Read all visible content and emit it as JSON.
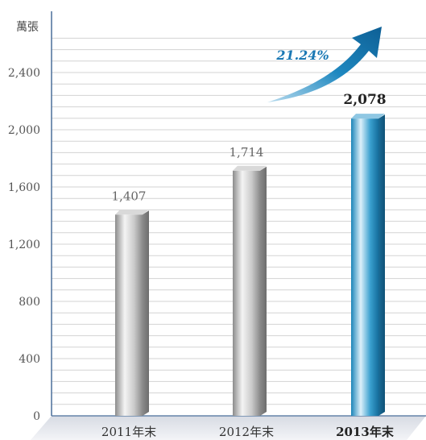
{
  "chart_data": {
    "type": "bar",
    "unit_label": "萬張",
    "categories": [
      "2011年末",
      "2012年末",
      "2013年末"
    ],
    "values": [
      1407,
      1714,
      2078
    ],
    "value_labels": [
      "1,407",
      "1,714",
      "2,078"
    ],
    "highlight_index": 2,
    "ylim": [
      0,
      2800
    ],
    "yticks": [
      0,
      400,
      800,
      1200,
      1600,
      2000,
      2400
    ],
    "ytick_labels": [
      "0",
      "400",
      "800",
      "1,200",
      "1,600",
      "2,000",
      "2,400"
    ],
    "grid": true,
    "growth_annotation": "21.24%",
    "colors": {
      "bar_normal": "#9a9a9a",
      "bar_highlight": "#1f8fbf",
      "accent": "#1a78b4",
      "axis": "#4a6f9a",
      "grid": "#d3d3d3"
    }
  }
}
